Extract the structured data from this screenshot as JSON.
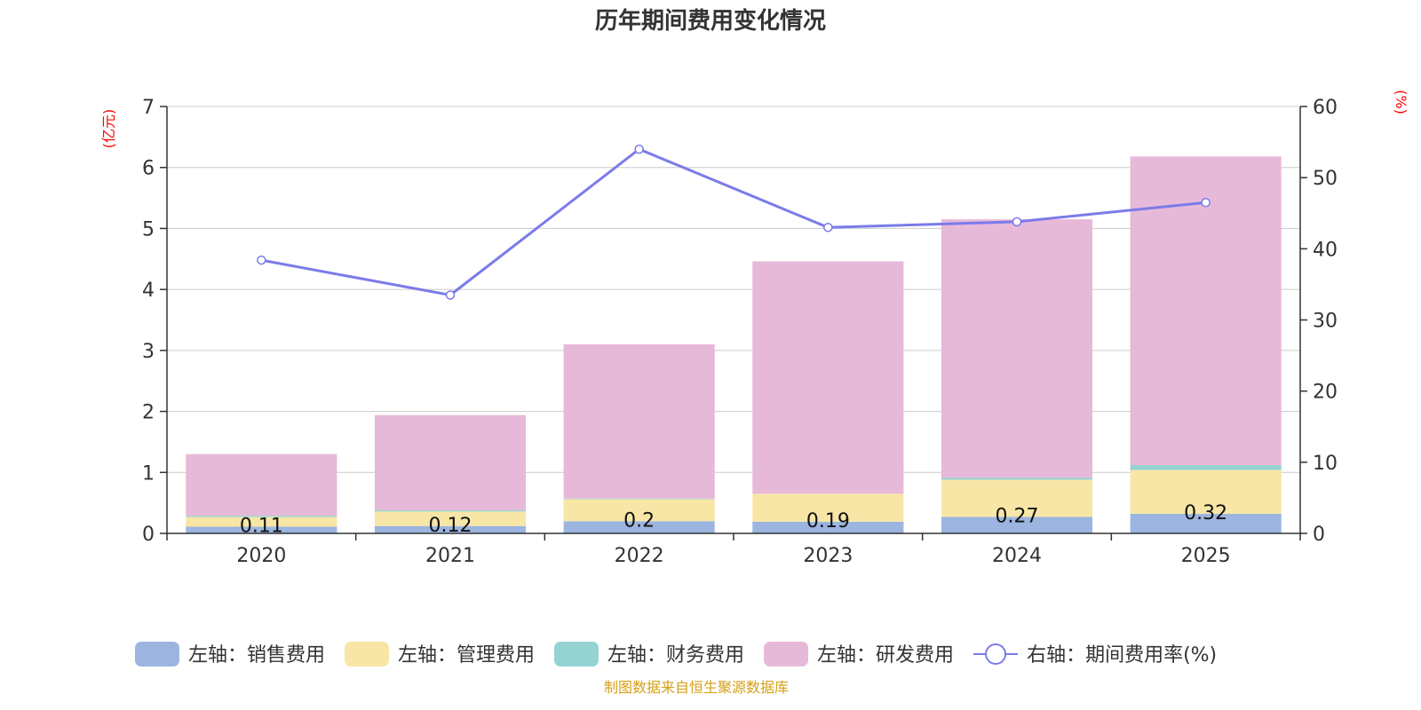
{
  "chart_data": {
    "type": "bar",
    "title": "历年期间费用变化情况",
    "categories": [
      "2020",
      "2021",
      "2022",
      "2023",
      "2024",
      "2025"
    ],
    "left_axis": {
      "unit": "(亿元)",
      "ylim": [
        0,
        7
      ],
      "ticks": [
        "0",
        "1",
        "2",
        "3",
        "4",
        "5",
        "6",
        "7"
      ]
    },
    "right_axis": {
      "unit": "(%)",
      "ylim": [
        0,
        60
      ],
      "ticks": [
        "0",
        "10",
        "20",
        "30",
        "40",
        "50",
        "60"
      ]
    },
    "series": [
      {
        "name": "左轴：销售费用",
        "type": "bar",
        "axis": "left",
        "color": "#9bb5e0",
        "values": [
          0.11,
          0.12,
          0.2,
          0.19,
          0.27,
          0.32
        ],
        "labels": [
          "0.11",
          "0.12",
          "0.2",
          "0.19",
          "0.27",
          "0.32"
        ]
      },
      {
        "name": "左轴：管理费用",
        "type": "bar",
        "axis": "left",
        "color": "#f7e6a6",
        "values": [
          0.16,
          0.24,
          0.36,
          0.46,
          0.61,
          0.72
        ]
      },
      {
        "name": "左轴：财务费用",
        "type": "bar",
        "axis": "left",
        "color": "#95d3d3",
        "values": [
          0.02,
          0.02,
          0.01,
          0.0,
          0.03,
          0.08
        ]
      },
      {
        "name": "左轴：研发费用",
        "type": "bar",
        "axis": "left",
        "color": "#e7b9d9",
        "values": [
          1.01,
          1.56,
          2.53,
          3.81,
          4.24,
          5.06
        ]
      },
      {
        "name": "右轴：期间费用率(%)",
        "type": "line",
        "axis": "right",
        "color": "#7b7bea",
        "values": [
          38.4,
          33.5,
          54.0,
          43.0,
          43.8,
          46.5
        ]
      }
    ],
    "grid": true,
    "legend_position": "bottom"
  },
  "footer": {
    "source": "制图数据来自恒生聚源数据库"
  }
}
